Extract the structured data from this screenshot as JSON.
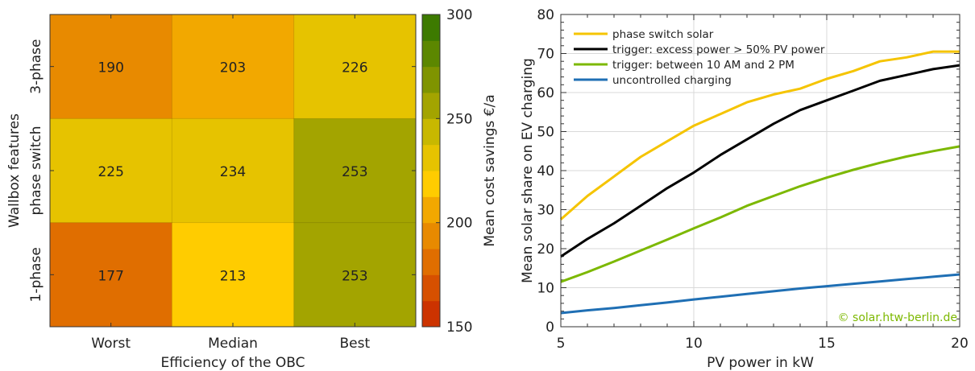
{
  "chart_data": [
    {
      "type": "heatmap",
      "xlabel": "Efficiency of the OBC",
      "ylabel": "Wallbox features",
      "x_categories": [
        "Worst",
        "Median",
        "Best"
      ],
      "y_categories": [
        "3-phase",
        "phase switch",
        "1-phase"
      ],
      "values": [
        [
          190,
          203,
          226
        ],
        [
          225,
          234,
          253
        ],
        [
          177,
          213,
          253
        ]
      ],
      "colorbar": {
        "label": "Mean cost savings €/a",
        "range": [
          150,
          300
        ],
        "ticks": [
          "150",
          "200",
          "250",
          "300"
        ],
        "bins": [
          "#cc3300",
          "#d65000",
          "#e06e00",
          "#e88a00",
          "#f2a800",
          "#ffcc00",
          "#e6c300",
          "#c8b800",
          "#a3a400",
          "#7f9400",
          "#5c8700",
          "#3d7a00"
        ]
      }
    },
    {
      "type": "line",
      "xlabel": "PV power in kW",
      "ylabel": "Mean solar share on EV charging",
      "xlim": [
        5,
        20
      ],
      "ylim": [
        0,
        80
      ],
      "xticks": [
        "5",
        "10",
        "15",
        "20"
      ],
      "yticks": [
        "0",
        "10",
        "20",
        "30",
        "40",
        "50",
        "60",
        "70",
        "80"
      ],
      "grid": true,
      "legend_position": "top-left",
      "x": [
        5,
        6,
        7,
        8,
        9,
        10,
        11,
        12,
        13,
        14,
        15,
        16,
        17,
        18,
        19,
        20
      ],
      "series": [
        {
          "name": "phase switch solar",
          "color": "#f5c400",
          "values": [
            27.5,
            33.5,
            38.5,
            43.5,
            47.5,
            51.5,
            54.5,
            57.5,
            59.5,
            61.0,
            63.5,
            65.5,
            68.0,
            69.0,
            70.5,
            70.5
          ]
        },
        {
          "name": "trigger: excess power > 50% PV power",
          "color": "#000000",
          "values": [
            18.0,
            22.5,
            26.5,
            31.0,
            35.5,
            39.5,
            44.0,
            48.0,
            52.0,
            55.5,
            58.0,
            60.5,
            63.0,
            64.5,
            66.0,
            67.0
          ]
        },
        {
          "name": "trigger: between 10 AM and 2 PM",
          "color": "#7cb800",
          "values": [
            11.5,
            14.0,
            16.7,
            19.5,
            22.3,
            25.2,
            28.0,
            31.0,
            33.5,
            36.0,
            38.2,
            40.2,
            42.0,
            43.6,
            45.0,
            46.2
          ]
        },
        {
          "name": "uncontrolled charging",
          "color": "#1f6fb4",
          "values": [
            3.5,
            4.2,
            4.8,
            5.5,
            6.2,
            7.0,
            7.7,
            8.4,
            9.1,
            9.8,
            10.4,
            11.0,
            11.6,
            12.2,
            12.8,
            13.4
          ]
        }
      ],
      "annotation": {
        "text": "© solar.htw-berlin.de",
        "color": "#7cb800"
      }
    }
  ]
}
